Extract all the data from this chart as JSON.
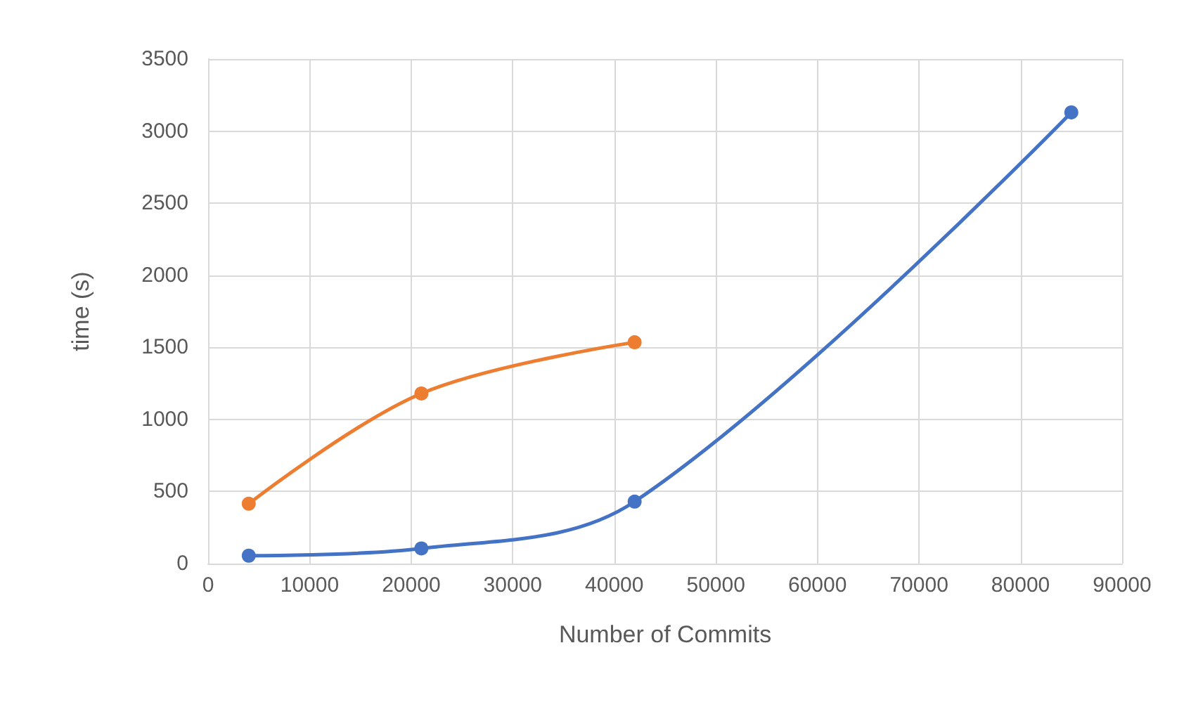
{
  "chart_data": {
    "type": "line",
    "xlabel": "Number of Commits",
    "ylabel": "time (s)",
    "xlim": [
      0,
      90000
    ],
    "xticks": [
      0,
      10000,
      20000,
      30000,
      40000,
      50000,
      60000,
      70000,
      80000,
      90000
    ],
    "ylim": [
      0,
      3500
    ],
    "yticks": [
      0,
      500,
      1000,
      1500,
      2000,
      2500,
      3000,
      3500
    ],
    "grid": true,
    "marker": "circle",
    "line_style": "solid",
    "series": [
      {
        "color": "#4472c4",
        "x": [
          4000,
          21000,
          42000,
          85000
        ],
        "values": [
          55,
          105,
          430,
          3130
        ]
      },
      {
        "color": "#ed7d31",
        "x": [
          4000,
          21000,
          42000
        ],
        "values": [
          415,
          1180,
          1535
        ]
      }
    ]
  }
}
